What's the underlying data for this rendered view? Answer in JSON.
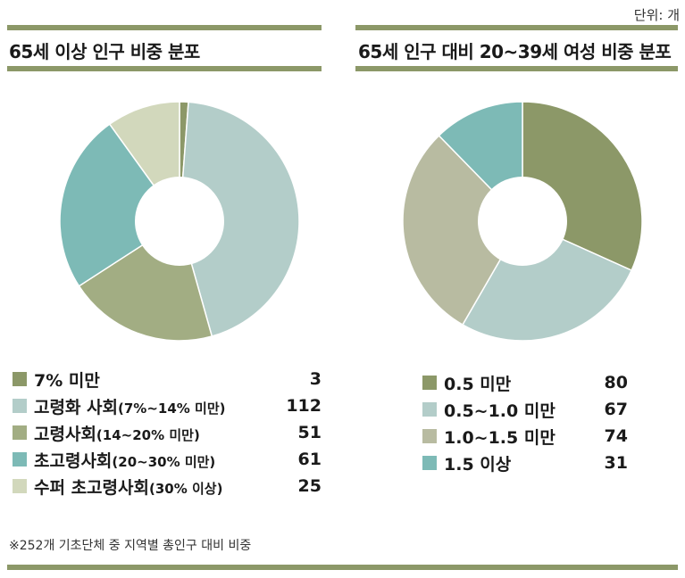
{
  "unit_label": "단위: 개",
  "footnote": "※252개 기초단체 중 지역별 총인구 대비 비중",
  "colors": {
    "rule": "#8c9868"
  },
  "chart_data": [
    {
      "type": "pie",
      "title": "65세 이상 인구  비중 분포",
      "categories": [
        {
          "main": "7% 미만",
          "sub": ""
        },
        {
          "main": "고령화 사회",
          "sub": "(7%~14% 미만)"
        },
        {
          "main": "고령사회",
          "sub": "(14~20% 미만)"
        },
        {
          "main": "초고령사회",
          "sub": "(20~30% 미만)"
        },
        {
          "main": "수퍼 초고령사회",
          "sub": "(30% 이상)"
        }
      ],
      "values": [
        3,
        112,
        51,
        61,
        25
      ],
      "colors": [
        "#8c9868",
        "#b3cdc9",
        "#a2ad83",
        "#7dbab6",
        "#d2d8bc"
      ]
    },
    {
      "type": "pie",
      "title": "65세 인구 대비 20~39세 여성 비중 분포",
      "categories": [
        {
          "main": "0.5 미만",
          "sub": ""
        },
        {
          "main": "0.5~1.0 미만",
          "sub": ""
        },
        {
          "main": "1.0~1.5 미만",
          "sub": ""
        },
        {
          "main": "1.5 이상",
          "sub": ""
        }
      ],
      "values": [
        80,
        67,
        74,
        31
      ],
      "colors": [
        "#8c9868",
        "#b3cdc9",
        "#b8bba1",
        "#7dbab6"
      ]
    }
  ]
}
